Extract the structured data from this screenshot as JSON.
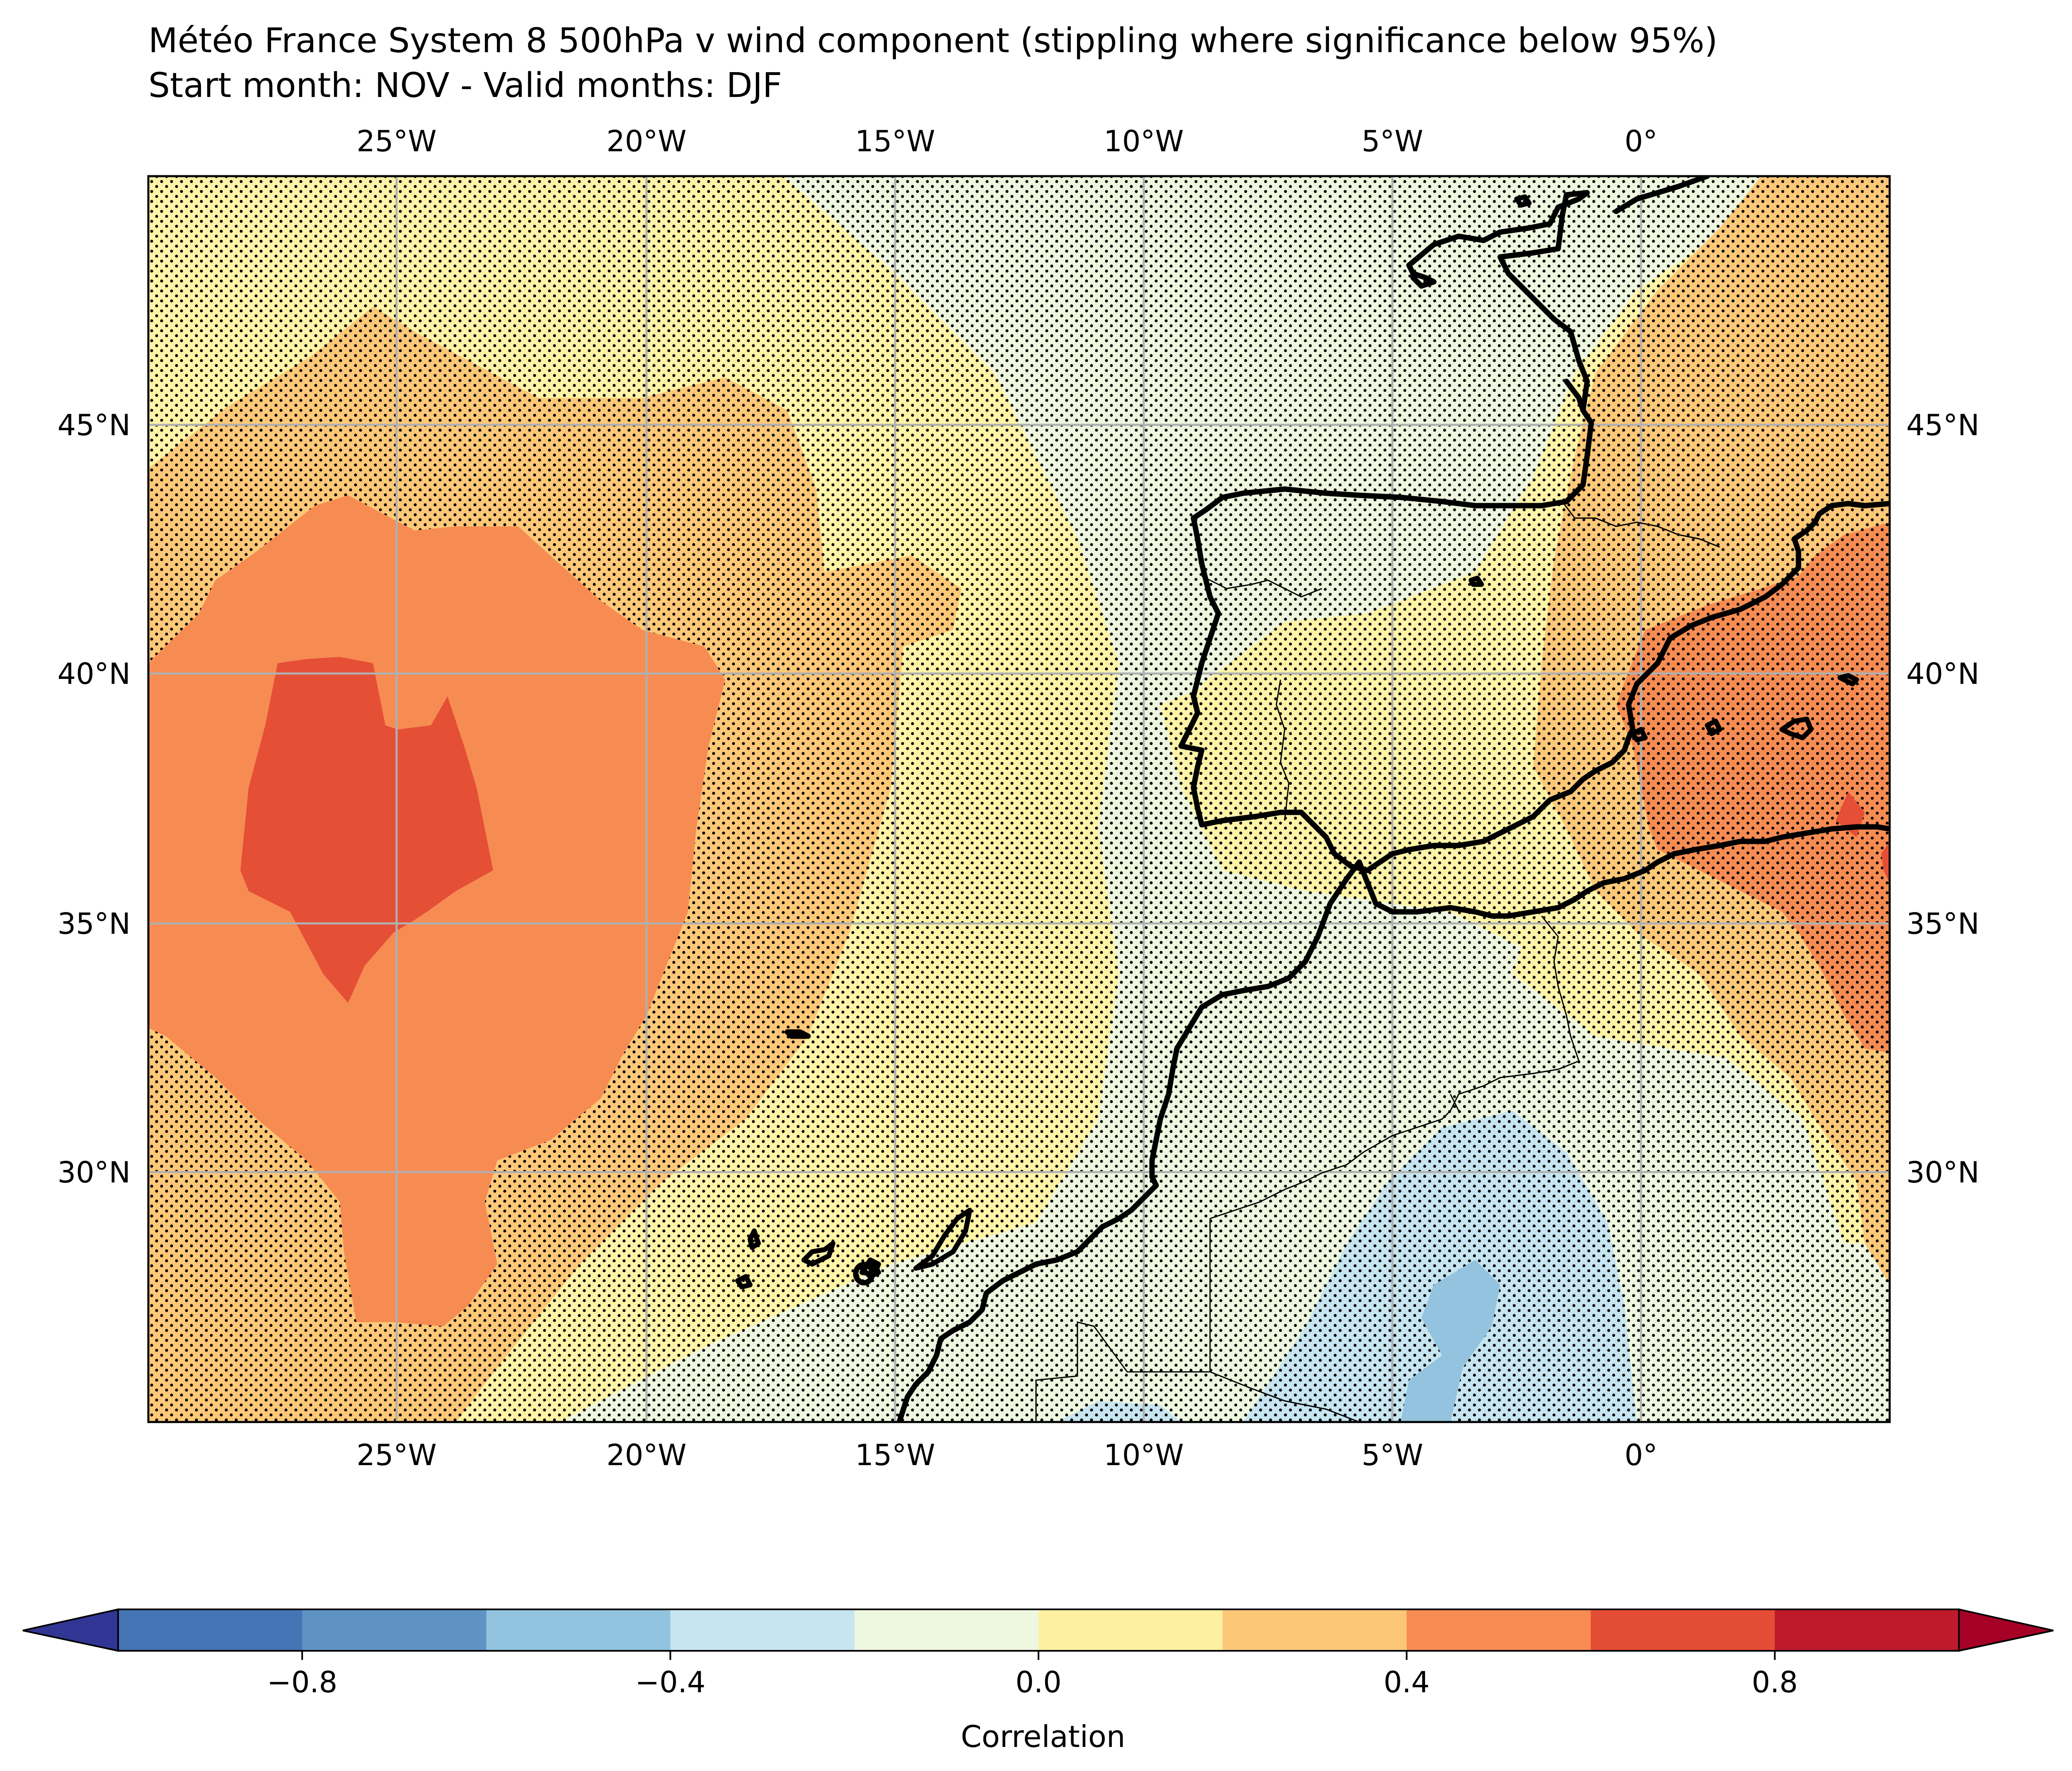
{
  "title": {
    "line1": "Météo France System 8 500hPa v wind component (stippling where significance below 95%)",
    "line2": "Start month: NOV - Valid months: DJF"
  },
  "map": {
    "lon_ticks": [
      "25°W",
      "20°W",
      "15°W",
      "10°W",
      "5°W",
      "0°"
    ],
    "lat_ticks": [
      "45°N",
      "40°N",
      "35°N",
      "30°N"
    ],
    "lon_range": [
      -30,
      5
    ],
    "lat_range": [
      25,
      50
    ],
    "gridlines": true,
    "stippling": "significance below 95%"
  },
  "colorbar": {
    "label": "Correlation",
    "ticks": [
      "−0.8",
      "−0.4",
      "0.0",
      "0.4",
      "0.8"
    ],
    "levels": [
      -1.0,
      -0.8,
      -0.6,
      -0.4,
      -0.2,
      0.0,
      0.2,
      0.4,
      0.6,
      0.8,
      1.0
    ],
    "colors": [
      "#4575b4",
      "#5e93c4",
      "#91c2de",
      "#c6e5f0",
      "#eef7df",
      "#fdf0a0",
      "#fdc778",
      "#f88c52",
      "#e34d34",
      "#be1a2b"
    ],
    "extend_low_color": "#313695",
    "extend_high_color": "#a50026"
  },
  "field_colors": {
    "c_0_2": "#fef3a7",
    "c_2_4": "#fdc878",
    "c_4_6": "#f78c53",
    "c_6_8": "#e54f36",
    "c_m2_0": "#eef6df",
    "c_m4_m2": "#c7e5f0",
    "c_m6_m4": "#93c3de"
  }
}
